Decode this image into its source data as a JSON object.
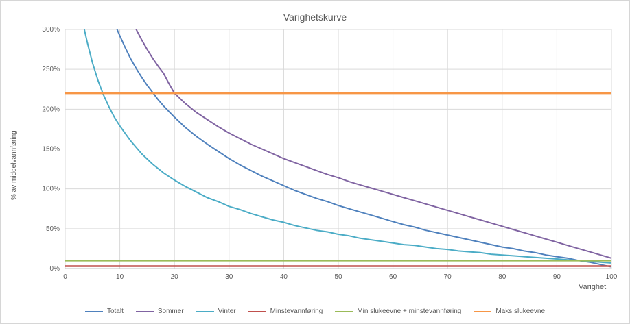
{
  "chart_data": {
    "type": "line",
    "title": "Varighetskurve",
    "xlabel": "Varighet",
    "ylabel": "% av middelvannføring",
    "xlim": [
      0,
      100
    ],
    "ylim": [
      0,
      300
    ],
    "grid": true,
    "legend_position": "bottom",
    "x_ticks": [
      0,
      10,
      20,
      30,
      40,
      50,
      60,
      70,
      80,
      90,
      100
    ],
    "y_ticks": [
      {
        "value": 0,
        "label": "0%"
      },
      {
        "value": 50,
        "label": "50%"
      },
      {
        "value": 100,
        "label": "100%"
      },
      {
        "value": 150,
        "label": "150%"
      },
      {
        "value": 200,
        "label": "200%"
      },
      {
        "value": 250,
        "label": "250%"
      },
      {
        "value": 300,
        "label": "300%"
      }
    ],
    "series": [
      {
        "name": "Totalt",
        "color": "#4F81BD",
        "width": 2,
        "points": [
          [
            9.5,
            300
          ],
          [
            10,
            292
          ],
          [
            11,
            277
          ],
          [
            12,
            263
          ],
          [
            13,
            251
          ],
          [
            14,
            240
          ],
          [
            15,
            230
          ],
          [
            16,
            221
          ],
          [
            17,
            212
          ],
          [
            18,
            204
          ],
          [
            19,
            197
          ],
          [
            20,
            190
          ],
          [
            22,
            177
          ],
          [
            24,
            166
          ],
          [
            26,
            156
          ],
          [
            28,
            147
          ],
          [
            30,
            138
          ],
          [
            32,
            130
          ],
          [
            34,
            123
          ],
          [
            36,
            116
          ],
          [
            38,
            110
          ],
          [
            40,
            104
          ],
          [
            42,
            98
          ],
          [
            44,
            93
          ],
          [
            46,
            88
          ],
          [
            48,
            84
          ],
          [
            50,
            79
          ],
          [
            52,
            75
          ],
          [
            54,
            71
          ],
          [
            56,
            67
          ],
          [
            58,
            63
          ],
          [
            60,
            59
          ],
          [
            62,
            55
          ],
          [
            64,
            52
          ],
          [
            66,
            48
          ],
          [
            68,
            45
          ],
          [
            70,
            42
          ],
          [
            72,
            39
          ],
          [
            74,
            36
          ],
          [
            76,
            33
          ],
          [
            78,
            30
          ],
          [
            80,
            27
          ],
          [
            82,
            25
          ],
          [
            84,
            22
          ],
          [
            86,
            20
          ],
          [
            88,
            17
          ],
          [
            90,
            15
          ],
          [
            92,
            13
          ],
          [
            94,
            10
          ],
          [
            96,
            8
          ],
          [
            98,
            5
          ],
          [
            100,
            2
          ]
        ]
      },
      {
        "name": "Sommer",
        "color": "#8064A2",
        "width": 2,
        "points": [
          [
            13,
            300
          ],
          [
            14,
            287
          ],
          [
            15,
            275
          ],
          [
            16,
            264
          ],
          [
            17,
            254
          ],
          [
            18,
            245
          ],
          [
            19,
            232
          ],
          [
            20,
            220
          ],
          [
            22,
            207
          ],
          [
            24,
            196
          ],
          [
            26,
            187
          ],
          [
            28,
            178
          ],
          [
            30,
            170
          ],
          [
            32,
            163
          ],
          [
            34,
            156
          ],
          [
            36,
            150
          ],
          [
            38,
            144
          ],
          [
            40,
            138
          ],
          [
            42,
            133
          ],
          [
            44,
            128
          ],
          [
            46,
            123
          ],
          [
            48,
            118
          ],
          [
            50,
            114
          ],
          [
            52,
            109
          ],
          [
            54,
            105
          ],
          [
            56,
            101
          ],
          [
            58,
            97
          ],
          [
            60,
            93
          ],
          [
            62,
            89
          ],
          [
            64,
            85
          ],
          [
            66,
            81
          ],
          [
            68,
            77
          ],
          [
            70,
            73
          ],
          [
            72,
            69
          ],
          [
            74,
            65
          ],
          [
            76,
            61
          ],
          [
            78,
            57
          ],
          [
            80,
            53
          ],
          [
            82,
            49
          ],
          [
            84,
            45
          ],
          [
            86,
            41
          ],
          [
            88,
            37
          ],
          [
            90,
            33
          ],
          [
            92,
            29
          ],
          [
            94,
            25
          ],
          [
            96,
            21
          ],
          [
            98,
            17
          ],
          [
            100,
            13
          ]
        ]
      },
      {
        "name": "Vinter",
        "color": "#4BACC6",
        "width": 2,
        "points": [
          [
            3.5,
            300
          ],
          [
            4,
            285
          ],
          [
            5,
            258
          ],
          [
            6,
            236
          ],
          [
            7,
            218
          ],
          [
            8,
            203
          ],
          [
            9,
            190
          ],
          [
            10,
            179
          ],
          [
            12,
            160
          ],
          [
            14,
            144
          ],
          [
            16,
            131
          ],
          [
            18,
            120
          ],
          [
            20,
            111
          ],
          [
            22,
            103
          ],
          [
            24,
            96
          ],
          [
            26,
            89
          ],
          [
            28,
            84
          ],
          [
            30,
            78
          ],
          [
            32,
            74
          ],
          [
            34,
            69
          ],
          [
            36,
            65
          ],
          [
            38,
            61
          ],
          [
            40,
            58
          ],
          [
            42,
            54
          ],
          [
            44,
            51
          ],
          [
            46,
            48
          ],
          [
            48,
            46
          ],
          [
            50,
            43
          ],
          [
            52,
            41
          ],
          [
            54,
            38
          ],
          [
            56,
            36
          ],
          [
            58,
            34
          ],
          [
            60,
            32
          ],
          [
            62,
            30
          ],
          [
            64,
            29
          ],
          [
            66,
            27
          ],
          [
            68,
            25
          ],
          [
            70,
            24
          ],
          [
            72,
            22
          ],
          [
            74,
            21
          ],
          [
            76,
            20
          ],
          [
            78,
            18
          ],
          [
            80,
            17
          ],
          [
            82,
            16
          ],
          [
            84,
            15
          ],
          [
            86,
            14
          ],
          [
            88,
            13
          ],
          [
            90,
            12
          ],
          [
            92,
            11
          ],
          [
            94,
            10
          ],
          [
            96,
            9
          ],
          [
            98,
            8
          ],
          [
            100,
            7
          ]
        ]
      },
      {
        "name": "Minstevannføring",
        "color": "#C0504D",
        "width": 2.5,
        "points": [
          [
            0,
            3
          ],
          [
            100,
            3
          ]
        ]
      },
      {
        "name": "Min slukeevne + minstevannføring",
        "color": "#9BBB59",
        "width": 2.5,
        "points": [
          [
            0,
            10
          ],
          [
            100,
            10
          ]
        ]
      },
      {
        "name": "Maks slukeevne",
        "color": "#F79646",
        "width": 2.5,
        "points": [
          [
            0,
            220
          ],
          [
            100,
            220
          ]
        ]
      }
    ]
  }
}
